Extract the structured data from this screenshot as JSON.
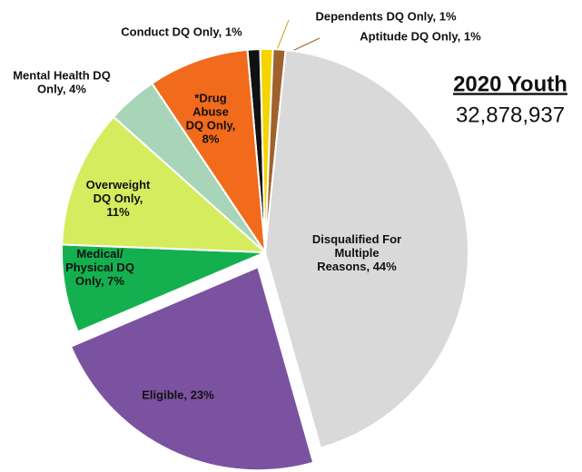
{
  "chart_data": {
    "type": "pie",
    "title": "2020 Youth",
    "subtitle": "32,878,937",
    "categories": [
      "Conduct DQ Only, 1%",
      "Dependents DQ Only, 1%",
      "Aptitude DQ Only, 1%",
      "Disqualified For\nMultiple\nReasons, 44%",
      "Eligible, 23%",
      "Medical/\nPhysical DQ\nOnly, 7%",
      "Overweight\nDQ Only,\n11%",
      "Mental Health DQ\nOnly, 4%",
      "*Drug\nAbuse\nDQ Only,\n8%"
    ],
    "values": [
      1,
      1,
      1,
      44,
      23,
      7,
      11,
      4,
      8
    ],
    "colors": [
      "#111111",
      "#f5d400",
      "#a0622d",
      "#d9d9d9",
      "#7b52a0",
      "#14b04f",
      "#d4ec5e",
      "#a8d5b8",
      "#f26a1b"
    ]
  }
}
